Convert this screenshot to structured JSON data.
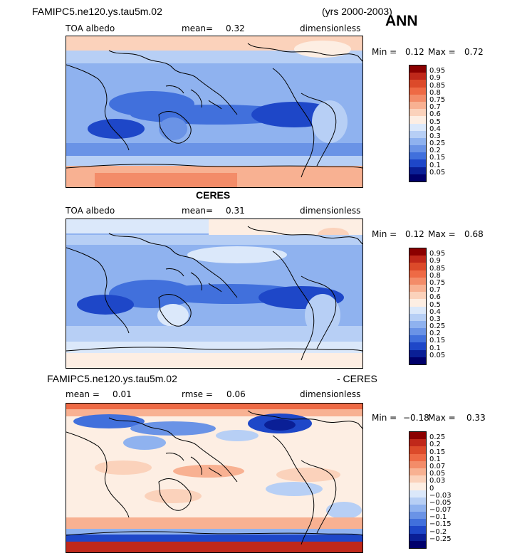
{
  "top": {
    "case_name": "FAMIPC5.ne120.ys.tau5m.02",
    "years": "(yrs 2000-2003)",
    "season": "ANN"
  },
  "panels": [
    {
      "title": "",
      "variable": "TOA albedo",
      "mean_label": "mean=",
      "mean_value": "0.32",
      "units": "dimensionless",
      "min_label": "Min =",
      "min_value": "0.12",
      "max_label": "Max =",
      "max_value": "0.72",
      "colorbar_levels": [
        "0.95",
        "0.9",
        "0.85",
        "0.8",
        "0.75",
        "0.7",
        "0.6",
        "0.5",
        "0.4",
        "0.3",
        "0.25",
        "0.2",
        "0.15",
        "0.1",
        "0.05"
      ]
    },
    {
      "title": "CERES",
      "variable": "TOA albedo",
      "mean_label": "mean=",
      "mean_value": "0.31",
      "units": "dimensionless",
      "min_label": "Min =",
      "min_value": "0.12",
      "max_label": "Max =",
      "max_value": "0.68",
      "colorbar_levels": [
        "0.95",
        "0.9",
        "0.85",
        "0.8",
        "0.75",
        "0.7",
        "0.6",
        "0.5",
        "0.4",
        "0.3",
        "0.25",
        "0.2",
        "0.15",
        "0.1",
        "0.05"
      ]
    },
    {
      "title_left": "FAMIPC5.ne120.ys.tau5m.02",
      "title_right": "- CERES",
      "mean_label": "mean =",
      "mean_value": "0.01",
      "rmse_label": "rmse =",
      "rmse_value": "0.06",
      "units": "dimensionless",
      "min_label": "Min =",
      "min_value": "−0.18",
      "max_label": "Max =",
      "max_value": "0.33",
      "colorbar_levels": [
        "0.25",
        "0.2",
        "0.15",
        "0.1",
        "0.07",
        "0.05",
        "0.03",
        "0",
        "−0.03",
        "−0.05",
        "−0.07",
        "−0.1",
        "−0.15",
        "−0.2",
        "−0.25"
      ]
    }
  ],
  "colors": {
    "abs_scale": [
      "#8b0000",
      "#c0281a",
      "#dc4a2a",
      "#ee6a45",
      "#f38c69",
      "#f8b192",
      "#fbd2bb",
      "#fdeee3",
      "#dbe8fa",
      "#b7cff5",
      "#8fb2ef",
      "#6a93e6",
      "#4170dc",
      "#1e47c8",
      "#0a1f96",
      "#00006b"
    ],
    "diff_scale": [
      "#8b0000",
      "#c0281a",
      "#dc4a2a",
      "#ee6a45",
      "#f38c69",
      "#f8b192",
      "#fbd2bb",
      "#fdeee3",
      "#dbe8fa",
      "#b7cff5",
      "#8fb2ef",
      "#6a93e6",
      "#4170dc",
      "#1e47c8",
      "#0a1f96",
      "#00006b"
    ],
    "coastline": "#000000"
  }
}
